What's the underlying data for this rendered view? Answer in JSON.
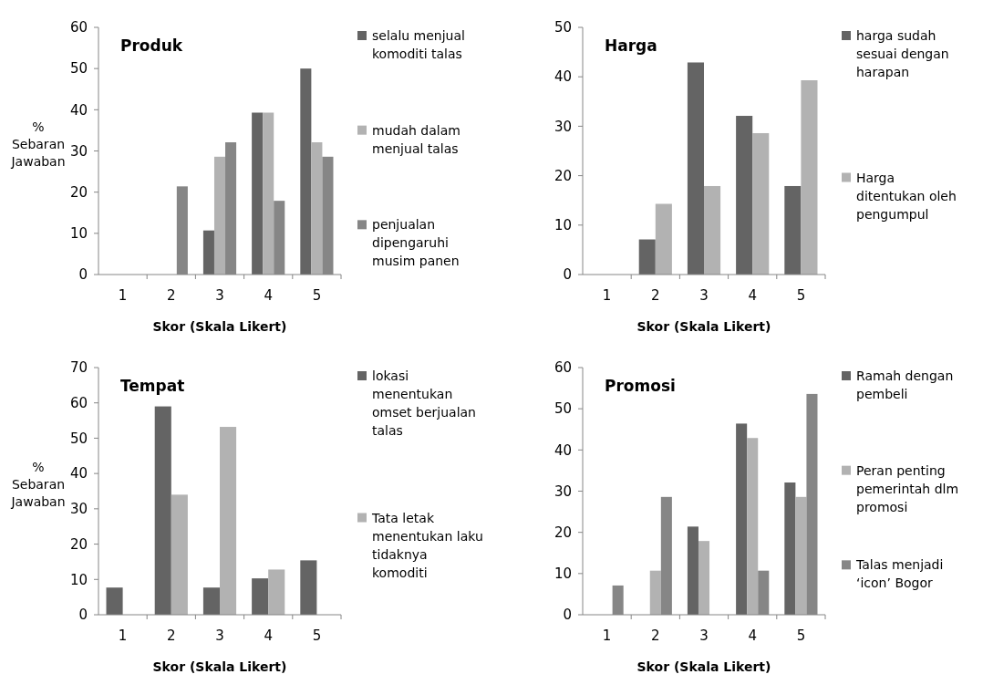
{
  "chart_data": [
    {
      "type": "bar",
      "title": "Produk",
      "xlabel": "Skor (Skala Likert)",
      "ylabel": "% Sebaran Jawaban",
      "categories": [
        "1",
        "2",
        "3",
        "4",
        "5"
      ],
      "ylim": [
        0,
        60
      ],
      "yticks": [
        0,
        10,
        20,
        30,
        40,
        50,
        60
      ],
      "legend": "right",
      "series": [
        {
          "name": "selalu menjual komoditi talas",
          "color": "#646464",
          "values": [
            0,
            0,
            10.7,
            39.3,
            50
          ]
        },
        {
          "name": "mudah dalam menjual talas",
          "color": "#b2b2b2",
          "values": [
            0,
            0,
            28.6,
            39.3,
            32.1
          ]
        },
        {
          "name": "penjualan dipengaruhi musim panen",
          "color": "#868686",
          "values": [
            0,
            21.4,
            32.1,
            17.9,
            28.6
          ]
        }
      ]
    },
    {
      "type": "bar",
      "title": "Harga",
      "xlabel": "Skor (Skala Likert)",
      "categories": [
        "1",
        "2",
        "3",
        "4",
        "5"
      ],
      "ylim": [
        0,
        50
      ],
      "yticks": [
        0,
        10,
        20,
        30,
        40,
        50
      ],
      "legend": "right",
      "series": [
        {
          "name": "harga sudah sesuai dengan harapan",
          "color": "#646464",
          "values": [
            0,
            7.1,
            42.9,
            32.1,
            17.9
          ]
        },
        {
          "name": "Harga ditentukan oleh pengumpul",
          "color": "#b2b2b2",
          "values": [
            0,
            14.3,
            17.9,
            28.6,
            39.3
          ]
        }
      ]
    },
    {
      "type": "bar",
      "title": "Tempat",
      "xlabel": "Skor (Skala Likert)",
      "ylabel": "% Sebaran Jawaban",
      "categories": [
        "1",
        "2",
        "3",
        "4",
        "5"
      ],
      "ylim": [
        0,
        70
      ],
      "yticks": [
        0,
        10,
        20,
        30,
        40,
        50,
        60,
        70
      ],
      "legend": "right",
      "series": [
        {
          "name": "lokasi menentukan omset berjualan talas",
          "color": "#646464",
          "values": [
            7.7,
            59,
            7.7,
            10.3,
            15.4
          ]
        },
        {
          "name": "Tata letak menentukan laku tidaknya komoditi",
          "color": "#b2b2b2",
          "values": [
            0,
            34,
            53.2,
            12.8,
            0
          ]
        }
      ]
    },
    {
      "type": "bar",
      "title": "Promosi",
      "xlabel": "Skor (Skala Likert)",
      "categories": [
        "1",
        "2",
        "3",
        "4",
        "5"
      ],
      "ylim": [
        0,
        60
      ],
      "yticks": [
        0,
        10,
        20,
        30,
        40,
        50,
        60
      ],
      "legend": "right",
      "series": [
        {
          "name": "Ramah dengan pembeli",
          "color": "#646464",
          "values": [
            0,
            0,
            21.4,
            46.4,
            32.1
          ]
        },
        {
          "name": "Peran penting pemerintah dlm promosi",
          "color": "#b2b2b2",
          "values": [
            0,
            10.7,
            17.9,
            42.9,
            28.6
          ]
        },
        {
          "name": "Talas menjadi ‘icon’ Bogor",
          "color": "#868686",
          "values": [
            7.1,
            28.6,
            0,
            10.7,
            53.6
          ]
        }
      ]
    }
  ]
}
